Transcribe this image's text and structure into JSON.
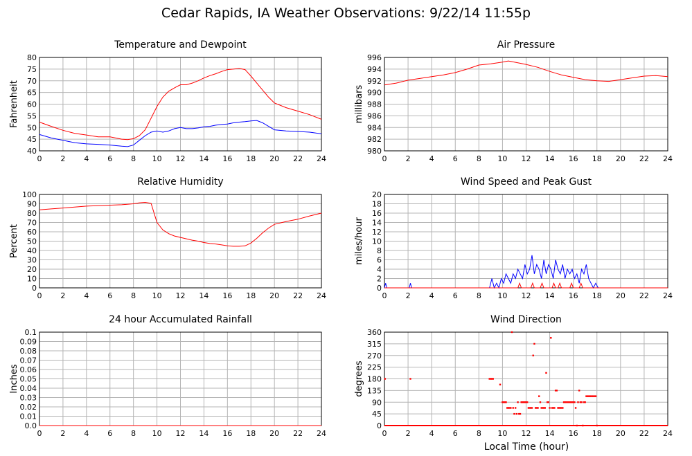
{
  "page": {
    "title": "Cedar Rapids, IA Weather Observations: 9/22/14 11:55p",
    "xlabel": "Local Time (hour)"
  },
  "colors": {
    "red": "#ff0000",
    "blue": "#0000ff",
    "grid": "#b4b4b4",
    "frame": "#000000"
  },
  "chart_data": [
    {
      "id": "temp",
      "type": "line",
      "title": "Temperature and Dewpoint",
      "ylabel": "Fahrenheit",
      "xlim": [
        0,
        24
      ],
      "ylim": [
        40,
        80
      ],
      "xticks": [
        0,
        2,
        4,
        6,
        8,
        10,
        12,
        14,
        16,
        18,
        20,
        22,
        24
      ],
      "yticks": [
        40,
        45,
        50,
        55,
        60,
        65,
        70,
        75,
        80
      ],
      "series": [
        {
          "color": "red",
          "x": [
            0,
            1,
            2,
            3,
            4,
            5,
            6,
            7,
            7.5,
            8,
            8.5,
            9,
            9.5,
            10,
            10.5,
            11,
            11.5,
            12,
            12.5,
            13,
            13.5,
            14,
            14.5,
            15,
            15.5,
            16,
            16.5,
            17,
            17.5,
            18,
            18.5,
            19,
            19.5,
            20,
            21,
            22,
            23,
            24
          ],
          "y": [
            52.3,
            50.5,
            48.8,
            47.5,
            46.8,
            46.0,
            46.0,
            45.0,
            44.8,
            45.2,
            46.5,
            49.0,
            54.0,
            59.0,
            63.0,
            65.5,
            67.0,
            68.3,
            68.3,
            69.0,
            70.0,
            71.2,
            72.2,
            73.0,
            74.0,
            74.8,
            75.0,
            75.3,
            74.8,
            72.0,
            69.0,
            66.0,
            63.0,
            60.5,
            58.5,
            57.0,
            55.5,
            53.5
          ]
        },
        {
          "color": "blue",
          "x": [
            0,
            1,
            2,
            3,
            4,
            5,
            6,
            7,
            7.5,
            8,
            8.5,
            9,
            9.5,
            10,
            10.5,
            11,
            11.5,
            12,
            12.5,
            13,
            13.5,
            14,
            14.5,
            15,
            15.5,
            16,
            16.5,
            17,
            17.5,
            18,
            18.5,
            19,
            19.5,
            20,
            21,
            22,
            23,
            24
          ],
          "y": [
            47.0,
            45.5,
            44.5,
            43.5,
            43.0,
            42.8,
            42.5,
            42.0,
            41.8,
            42.5,
            44.5,
            46.5,
            48.0,
            48.5,
            48.0,
            48.5,
            49.5,
            50.0,
            49.5,
            49.5,
            49.8,
            50.3,
            50.5,
            51.0,
            51.3,
            51.5,
            52.0,
            52.3,
            52.5,
            52.8,
            53.0,
            52.0,
            50.5,
            49.0,
            48.5,
            48.3,
            48.0,
            47.3
          ]
        }
      ]
    },
    {
      "id": "pressure",
      "type": "line",
      "title": "Air Pressure",
      "ylabel": "millibars",
      "xlim": [
        0,
        24
      ],
      "ylim": [
        980,
        996
      ],
      "xticks": [
        0,
        2,
        4,
        6,
        8,
        10,
        12,
        14,
        16,
        18,
        20,
        22,
        24
      ],
      "yticks": [
        980,
        982,
        984,
        986,
        988,
        990,
        992,
        994,
        996
      ],
      "series": [
        {
          "color": "red",
          "x": [
            0,
            1,
            2,
            3,
            4,
            5,
            6,
            7,
            8,
            9,
            10,
            10.5,
            11,
            12,
            13,
            14,
            15,
            16,
            17,
            18,
            19,
            20,
            21,
            22,
            23,
            24
          ],
          "y": [
            991.3,
            991.6,
            992.1,
            992.4,
            992.7,
            993.0,
            993.4,
            994.0,
            994.7,
            994.9,
            995.2,
            995.4,
            995.2,
            994.8,
            994.3,
            993.6,
            993.0,
            992.6,
            992.2,
            992.0,
            991.9,
            992.2,
            992.5,
            992.8,
            992.9,
            992.7
          ]
        }
      ]
    },
    {
      "id": "rh",
      "type": "line",
      "title": "Relative Humidity",
      "ylabel": "Percent",
      "xlim": [
        0,
        24
      ],
      "ylim": [
        0,
        100
      ],
      "xticks": [
        0,
        2,
        4,
        6,
        8,
        10,
        12,
        14,
        16,
        18,
        20,
        22,
        24
      ],
      "yticks": [
        0,
        10,
        20,
        30,
        40,
        50,
        60,
        70,
        80,
        90,
        100
      ],
      "series": [
        {
          "color": "red",
          "x": [
            0,
            1,
            2,
            3,
            4,
            5,
            6,
            7,
            8,
            8.5,
            9,
            9.5,
            10,
            10.5,
            11,
            11.5,
            12,
            12.5,
            13,
            13.5,
            14,
            14.5,
            15,
            15.5,
            16,
            16.5,
            17,
            17.5,
            18,
            18.5,
            19,
            19.5,
            20,
            21,
            22,
            23,
            24
          ],
          "y": [
            83.5,
            84.5,
            85.5,
            86.5,
            87.5,
            88.0,
            88.5,
            89.0,
            90.0,
            91.0,
            91.5,
            90.5,
            70.0,
            62.0,
            58.0,
            55.5,
            54.0,
            52.5,
            51.0,
            50.0,
            48.5,
            47.5,
            47.0,
            46.0,
            45.0,
            44.5,
            44.5,
            45.0,
            48.0,
            53.0,
            59.0,
            64.0,
            68.0,
            71.0,
            73.5,
            77.0,
            80.0
          ]
        }
      ]
    },
    {
      "id": "wind",
      "type": "line",
      "title": "Wind Speed and Peak Gust",
      "ylabel": "miles/hour",
      "xlim": [
        0,
        24
      ],
      "ylim": [
        0,
        20
      ],
      "xticks": [
        0,
        2,
        4,
        6,
        8,
        10,
        12,
        14,
        16,
        18,
        20,
        22,
        24
      ],
      "yticks": [
        0,
        2,
        4,
        6,
        8,
        10,
        12,
        14,
        16,
        18,
        20
      ],
      "series": [
        {
          "color": "blue",
          "x": [
            0,
            0.1,
            0.2,
            2.1,
            2.2,
            2.3,
            8.9,
            9.1,
            9.3,
            9.5,
            9.7,
            9.9,
            10.1,
            10.3,
            10.5,
            10.7,
            10.9,
            11.1,
            11.3,
            11.5,
            11.7,
            11.9,
            12.1,
            12.3,
            12.5,
            12.7,
            12.9,
            13.1,
            13.3,
            13.5,
            13.7,
            13.9,
            14.1,
            14.3,
            14.5,
            14.7,
            14.9,
            15.1,
            15.3,
            15.5,
            15.7,
            15.9,
            16.1,
            16.3,
            16.5,
            16.7,
            16.9,
            17.1,
            17.3,
            17.5,
            17.7,
            17.9,
            18.1,
            24
          ],
          "y": [
            0,
            1,
            0,
            0,
            1,
            0,
            0,
            2,
            0,
            1,
            0,
            2,
            1,
            3,
            2,
            1,
            3,
            2,
            4,
            3,
            2,
            5,
            3,
            4,
            7,
            3,
            5,
            4,
            2,
            6,
            3,
            5,
            4,
            2,
            6,
            4,
            3,
            5,
            2,
            4,
            3,
            4,
            2,
            3,
            1,
            4,
            3,
            5,
            2,
            1,
            0,
            1,
            0,
            0
          ]
        },
        {
          "color": "red",
          "x": [
            0,
            11.3,
            11.45,
            11.6,
            12.1,
            12.4,
            12.55,
            12.7,
            13.0,
            13.2,
            13.35,
            13.5,
            14.0,
            14.2,
            14.35,
            14.5,
            14.7,
            14.85,
            15.0,
            15.7,
            15.85,
            16.0,
            16.5,
            16.65,
            16.8,
            24
          ],
          "y": [
            0,
            0,
            1,
            0,
            0,
            0,
            1,
            0,
            0,
            0,
            1,
            0,
            0,
            0,
            1,
            0,
            0,
            1,
            0,
            0,
            1,
            0,
            0,
            1,
            0,
            0
          ]
        }
      ]
    },
    {
      "id": "rain",
      "type": "line",
      "title": "24 hour Accumulated Rainfall",
      "ylabel": "Inches",
      "xlim": [
        0,
        24
      ],
      "ylim": [
        0,
        0.1
      ],
      "xticks": [
        0,
        2,
        4,
        6,
        8,
        10,
        12,
        14,
        16,
        18,
        20,
        22,
        24
      ],
      "yticks": [
        "0.0",
        "0.01",
        "0.02",
        "0.03",
        "0.04",
        "0.05",
        "0.06",
        "0.07",
        "0.08",
        "0.09",
        "0.1"
      ],
      "series": [
        {
          "color": "red",
          "x": [
            0,
            24
          ],
          "y": [
            0,
            0
          ]
        }
      ]
    },
    {
      "id": "wdir",
      "type": "scatter",
      "title": "Wind Direction",
      "ylabel": "degrees",
      "xlim": [
        0,
        24
      ],
      "ylim": [
        0,
        360
      ],
      "xticks": [
        0,
        2,
        4,
        6,
        8,
        10,
        12,
        14,
        16,
        18,
        20,
        22,
        24
      ],
      "yticks": [
        0,
        45,
        90,
        135,
        180,
        225,
        270,
        315,
        360
      ],
      "zero_line": {
        "color": "red",
        "x": [
          0,
          24
        ],
        "y": 0
      },
      "series": [
        {
          "color": "red",
          "x": [
            0.05,
            2.2,
            8.9,
            9.0,
            9.1,
            9.2,
            9.8,
            10.0,
            10.1,
            10.2,
            10.3,
            10.4,
            10.5,
            10.6,
            10.7,
            10.8,
            10.9,
            11.0,
            11.1,
            11.2,
            11.3,
            11.4,
            11.5,
            11.6,
            11.7,
            11.8,
            11.9,
            12.0,
            12.1,
            12.2,
            12.3,
            12.4,
            12.5,
            12.6,
            12.7,
            12.8,
            12.9,
            13.0,
            13.1,
            13.2,
            13.3,
            13.4,
            13.5,
            13.6,
            13.7,
            13.8,
            13.9,
            14.0,
            14.1,
            14.2,
            14.3,
            14.4,
            14.5,
            14.6,
            14.7,
            14.8,
            14.9,
            15.0,
            15.1,
            15.2,
            15.3,
            15.4,
            15.5,
            15.6,
            15.7,
            15.8,
            15.9,
            16.0,
            16.1,
            16.2,
            16.3,
            16.4,
            16.5,
            16.6,
            16.7,
            16.8,
            16.9,
            17.0,
            17.1,
            17.2,
            17.3,
            17.4,
            17.5,
            17.6,
            17.7,
            17.8,
            17.9,
            18.0
          ],
          "y": [
            180,
            180,
            180,
            180,
            180,
            180,
            158,
            90,
            90,
            90,
            90,
            68,
            68,
            68,
            68,
            360,
            68,
            45,
            68,
            45,
            90,
            45,
            45,
            90,
            90,
            90,
            90,
            90,
            90,
            68,
            68,
            68,
            68,
            270,
            315,
            68,
            68,
            68,
            113,
            90,
            68,
            68,
            68,
            68,
            203,
            90,
            90,
            68,
            338,
            68,
            68,
            68,
            135,
            135,
            68,
            68,
            68,
            68,
            68,
            90,
            90,
            90,
            90,
            90,
            90,
            90,
            90,
            90,
            90,
            68,
            0,
            90,
            135,
            90,
            90,
            0,
            90,
            90,
            113,
            113,
            113,
            113,
            113,
            113,
            113,
            113,
            113,
            0
          ]
        }
      ]
    }
  ]
}
